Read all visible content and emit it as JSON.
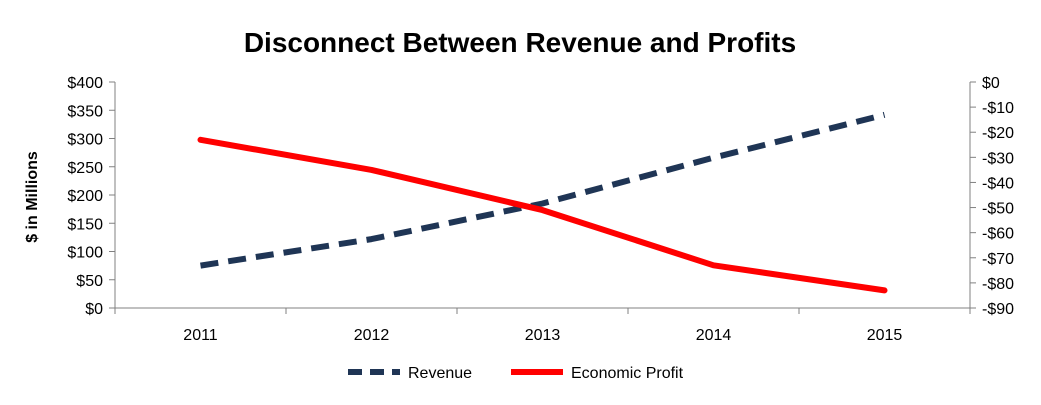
{
  "chart_data": {
    "type": "line",
    "title": "Disconnect Between Revenue and Profits",
    "ylabel": "$ in Millions",
    "y2label": "",
    "categories": [
      "2011",
      "2012",
      "2013",
      "2014",
      "2015"
    ],
    "ylim": [
      0,
      400
    ],
    "y2lim": [
      -90,
      0
    ],
    "yticks": [
      "$0",
      "$50",
      "$100",
      "$150",
      "$200",
      "$250",
      "$300",
      "$350",
      "$400"
    ],
    "y2ticks": [
      "-$90",
      "-$80",
      "-$70",
      "-$60",
      "-$50",
      "-$40",
      "-$30",
      "-$20",
      "-$10",
      "$0"
    ],
    "series": [
      {
        "name": "Revenue",
        "axis": "left",
        "style": "dashed",
        "color": "#1f3555",
        "values": [
          75,
          122,
          185,
          266,
          342
        ]
      },
      {
        "name": "Economic Profit",
        "axis": "right",
        "style": "solid",
        "color": "#ff0000",
        "values": [
          -23,
          -35,
          -51,
          -73,
          -83
        ]
      }
    ],
    "grid": false,
    "legend_position": "bottom"
  }
}
